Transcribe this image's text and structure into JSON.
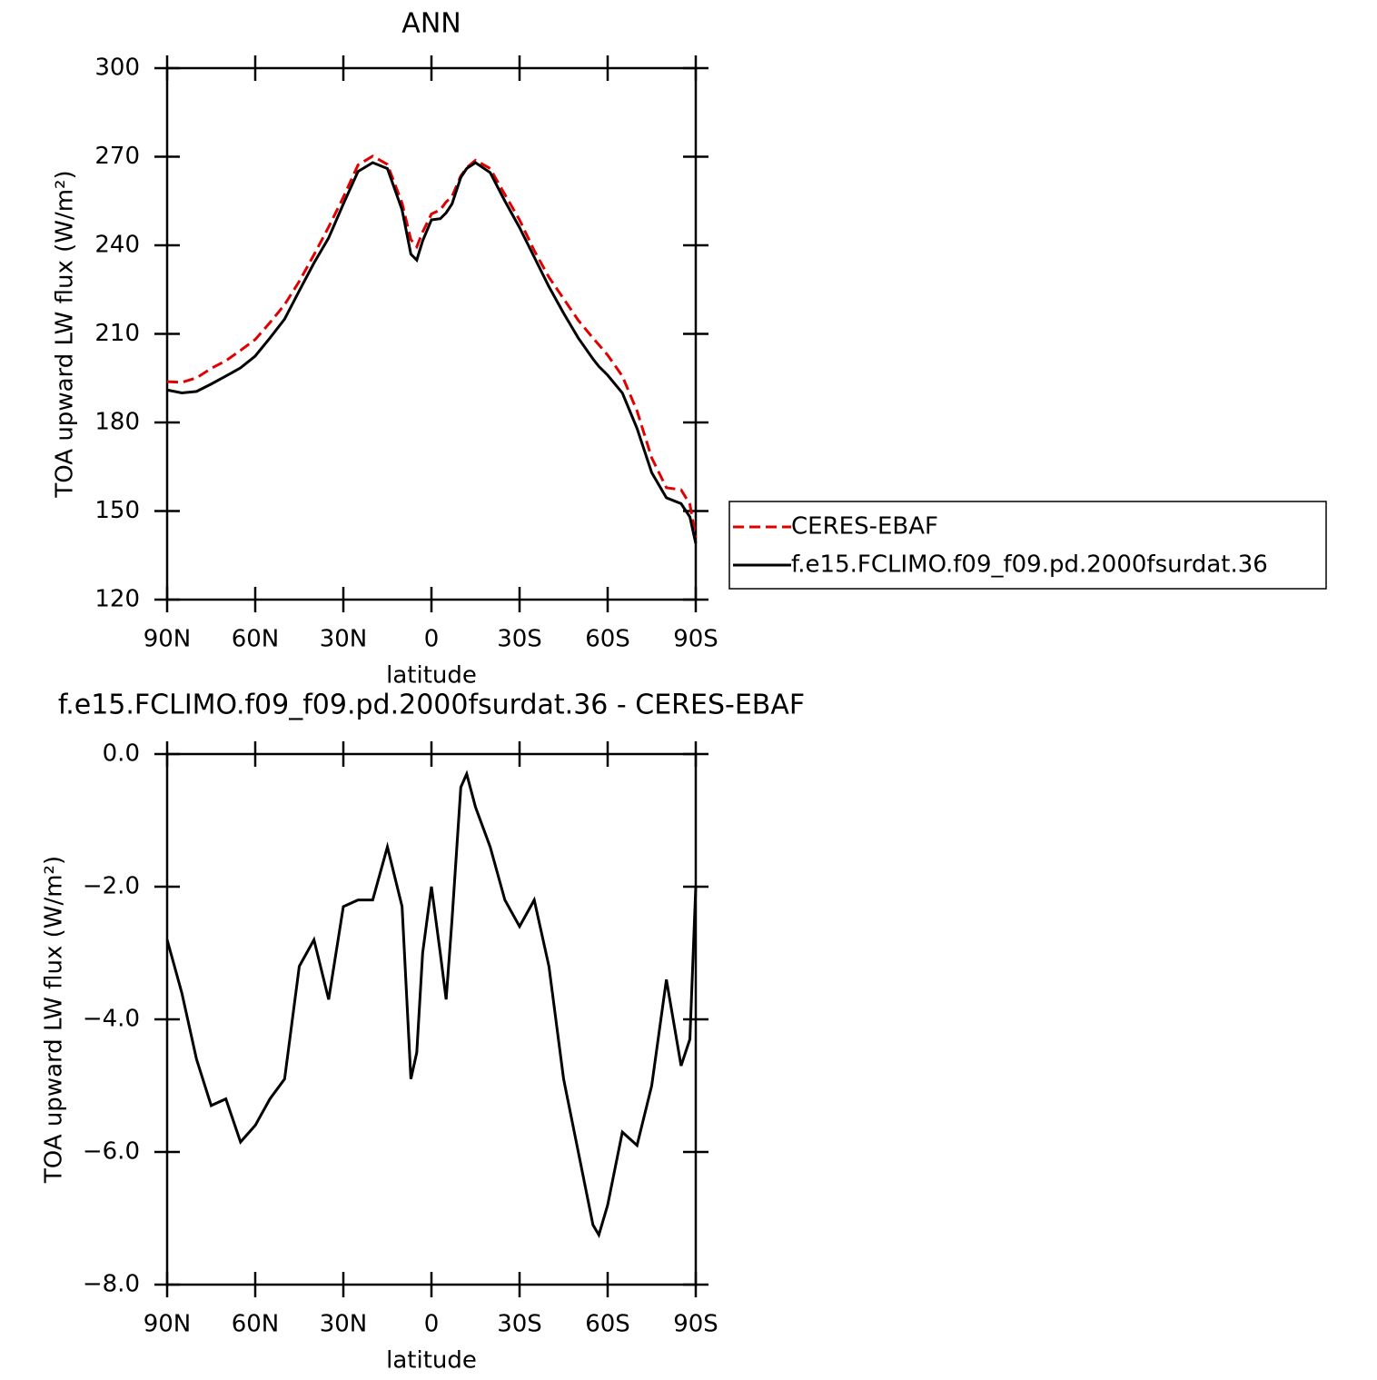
{
  "chart_data": [
    {
      "type": "line",
      "title": "ANN",
      "x_label": "latitude",
      "y_label": "TOA upward LW flux (W/m²)",
      "x": [
        90,
        85,
        80,
        75,
        70,
        65,
        60,
        55,
        50,
        45,
        40,
        35,
        30,
        25,
        20,
        15,
        10,
        7,
        5,
        3,
        0,
        -3,
        -5,
        -7,
        -10,
        -12,
        -15,
        -20,
        -25,
        -30,
        -35,
        -40,
        -45,
        -50,
        -55,
        -57,
        -60,
        -65,
        -70,
        -75,
        -80,
        -85,
        -88,
        -90
      ],
      "xlim": [
        90,
        -90
      ],
      "xticks": [
        {
          "value": 90,
          "label": "90N"
        },
        {
          "value": 60,
          "label": "60N"
        },
        {
          "value": 30,
          "label": "30N"
        },
        0,
        {
          "value": -30,
          "label": "30S"
        },
        {
          "value": -60,
          "label": "60S"
        },
        {
          "value": -90,
          "label": "90S"
        }
      ],
      "ylim": [
        120,
        300
      ],
      "yticks": [
        120,
        150,
        180,
        210,
        240,
        270,
        300
      ],
      "legend": "right",
      "series": [
        {
          "name": "CERES-EBAF",
          "color": "#e00000",
          "line_style": "dashed",
          "values": [
            193.8,
            193.6,
            195.1,
            198.3,
            200.9,
            204.4,
            208.1,
            213.8,
            219.9,
            227.8,
            236.8,
            246.2,
            256.3,
            267.2,
            270.2,
            267.4,
            254.3,
            241.9,
            239.5,
            244.5,
            250.6,
            252,
            254.7,
            256.5,
            263.5,
            266.3,
            268.8,
            266,
            257.2,
            248.6,
            238.2,
            229.2,
            221.9,
            214.6,
            208.6,
            206.3,
            202.8,
            195.7,
            183.9,
            168,
            157.9,
            157.2,
            152.3,
            141
          ]
        },
        {
          "name": "f.e15.FCLIMO.f09_f09.pd.2000fsurdat.36",
          "color": "#000000",
          "line_style": "solid",
          "values": [
            191,
            190,
            190.5,
            193,
            195.7,
            198.5,
            202.5,
            208.6,
            215,
            224.6,
            234,
            242.5,
            254,
            265,
            268,
            266,
            252,
            237,
            235,
            241.5,
            248.6,
            249,
            251,
            254,
            263,
            266,
            268,
            264.6,
            255,
            246,
            236,
            226,
            217,
            208.6,
            201.5,
            199,
            196,
            190,
            178,
            163,
            154.5,
            152.5,
            148,
            139
          ]
        }
      ]
    },
    {
      "type": "line",
      "title": "f.e15.FCLIMO.f09_f09.pd.2000fsurdat.36 - CERES-EBAF",
      "x_label": "latitude",
      "y_label": "TOA upward LW flux (W/m²)",
      "x": [
        90,
        85,
        80,
        75,
        70,
        65,
        60,
        55,
        50,
        45,
        40,
        35,
        30,
        25,
        20,
        15,
        10,
        7,
        5,
        3,
        0,
        -3,
        -5,
        -7,
        -10,
        -12,
        -15,
        -20,
        -25,
        -30,
        -35,
        -40,
        -45,
        -50,
        -55,
        -57,
        -60,
        -65,
        -70,
        -75,
        -80,
        -85,
        -88,
        -90
      ],
      "xlim": [
        90,
        -90
      ],
      "xticks": [
        {
          "value": 90,
          "label": "90N"
        },
        {
          "value": 60,
          "label": "60N"
        },
        {
          "value": 30,
          "label": "30N"
        },
        0,
        {
          "value": -30,
          "label": "30S"
        },
        {
          "value": -60,
          "label": "60S"
        },
        {
          "value": -90,
          "label": "90S"
        }
      ],
      "ylim": [
        -8,
        0
      ],
      "yticks": [
        {
          "value": -8,
          "label": "−8.0"
        },
        {
          "value": -6,
          "label": "−6.0"
        },
        {
          "value": -4,
          "label": "−4.0"
        },
        {
          "value": -2,
          "label": "−2.0"
        },
        {
          "value": 0,
          "label": "0.0"
        }
      ],
      "series": [
        {
          "color": "#000000",
          "line_style": "solid",
          "values": [
            -2.8,
            -3.6,
            -4.6,
            -5.3,
            -5.2,
            -5.85,
            -5.6,
            -5.2,
            -4.9,
            -3.2,
            -2.8,
            -3.7,
            -2.3,
            -2.2,
            -2.2,
            -1.4,
            -2.3,
            -4.9,
            -4.5,
            -3,
            -2,
            -3,
            -3.7,
            -2.5,
            -0.5,
            -0.3,
            -0.8,
            -1.4,
            -2.2,
            -2.6,
            -2.2,
            -3.2,
            -4.9,
            -6,
            -7.1,
            -7.25,
            -6.8,
            -5.7,
            -5.9,
            -5,
            -3.4,
            -4.7,
            -4.3,
            -2
          ]
        }
      ]
    }
  ]
}
